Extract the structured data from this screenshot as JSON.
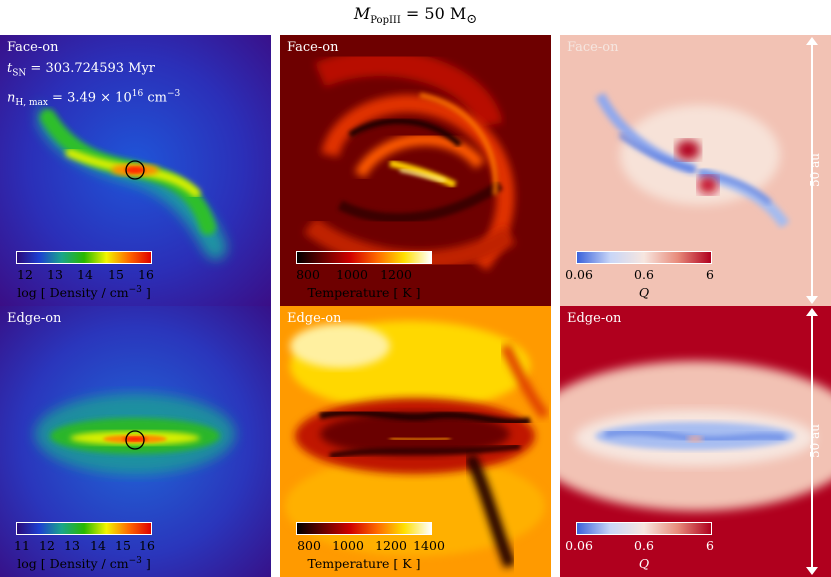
{
  "title": {
    "symbol": "M",
    "subscript": "PopIII",
    "rest": " = 50 M",
    "sun": "⊙"
  },
  "info": {
    "t_sym": "t",
    "t_sub": "SN",
    "t_val": " = 303.724593 Myr",
    "n_sym": "n",
    "n_sub": "H, max",
    "n_val": " = 3.49 × 10",
    "n_exp": "16",
    "n_unit": " cm",
    "n_unit_exp": "−3"
  },
  "rows": [
    {
      "label": "Face-on"
    },
    {
      "label": "Edge-on"
    }
  ],
  "colorbars": {
    "density_top": {
      "ticks": [
        "12",
        "13",
        "14",
        "15",
        "16"
      ],
      "label": "log [ Density / cm",
      "label_exp": "−3",
      "label_end": " ]"
    },
    "density_bottom": {
      "ticks": [
        "11",
        "12",
        "13",
        "14",
        "15",
        "16"
      ],
      "label": "log [ Density / cm",
      "label_exp": "−3",
      "label_end": " ]"
    },
    "temperature_top": {
      "ticks": [
        "800",
        "1000",
        "1200"
      ],
      "label": "Temperature [ K ]"
    },
    "temperature_bottom": {
      "ticks": [
        "800",
        "1000",
        "1200",
        "1400"
      ],
      "label": "Temperature [ K ]"
    },
    "toomre": {
      "ticks": [
        "0.06",
        "0.6",
        "6"
      ],
      "label": "Q"
    }
  },
  "scale_bar": {
    "label": "50 au"
  },
  "colors": {
    "density_cmap": [
      "#2a0b7a",
      "#1d3fd2",
      "#1aa58c",
      "#28b800",
      "#f2f500",
      "#ff6a00",
      "#e00000"
    ],
    "temperature_cmap": [
      "#000000",
      "#6a0000",
      "#d10000",
      "#ff6a00",
      "#ffe000",
      "#ffffff"
    ],
    "toomre_cmap": [
      "#3b62db",
      "#c9d6f7",
      "#f7e6df",
      "#e88c7c",
      "#b0001e"
    ]
  }
}
